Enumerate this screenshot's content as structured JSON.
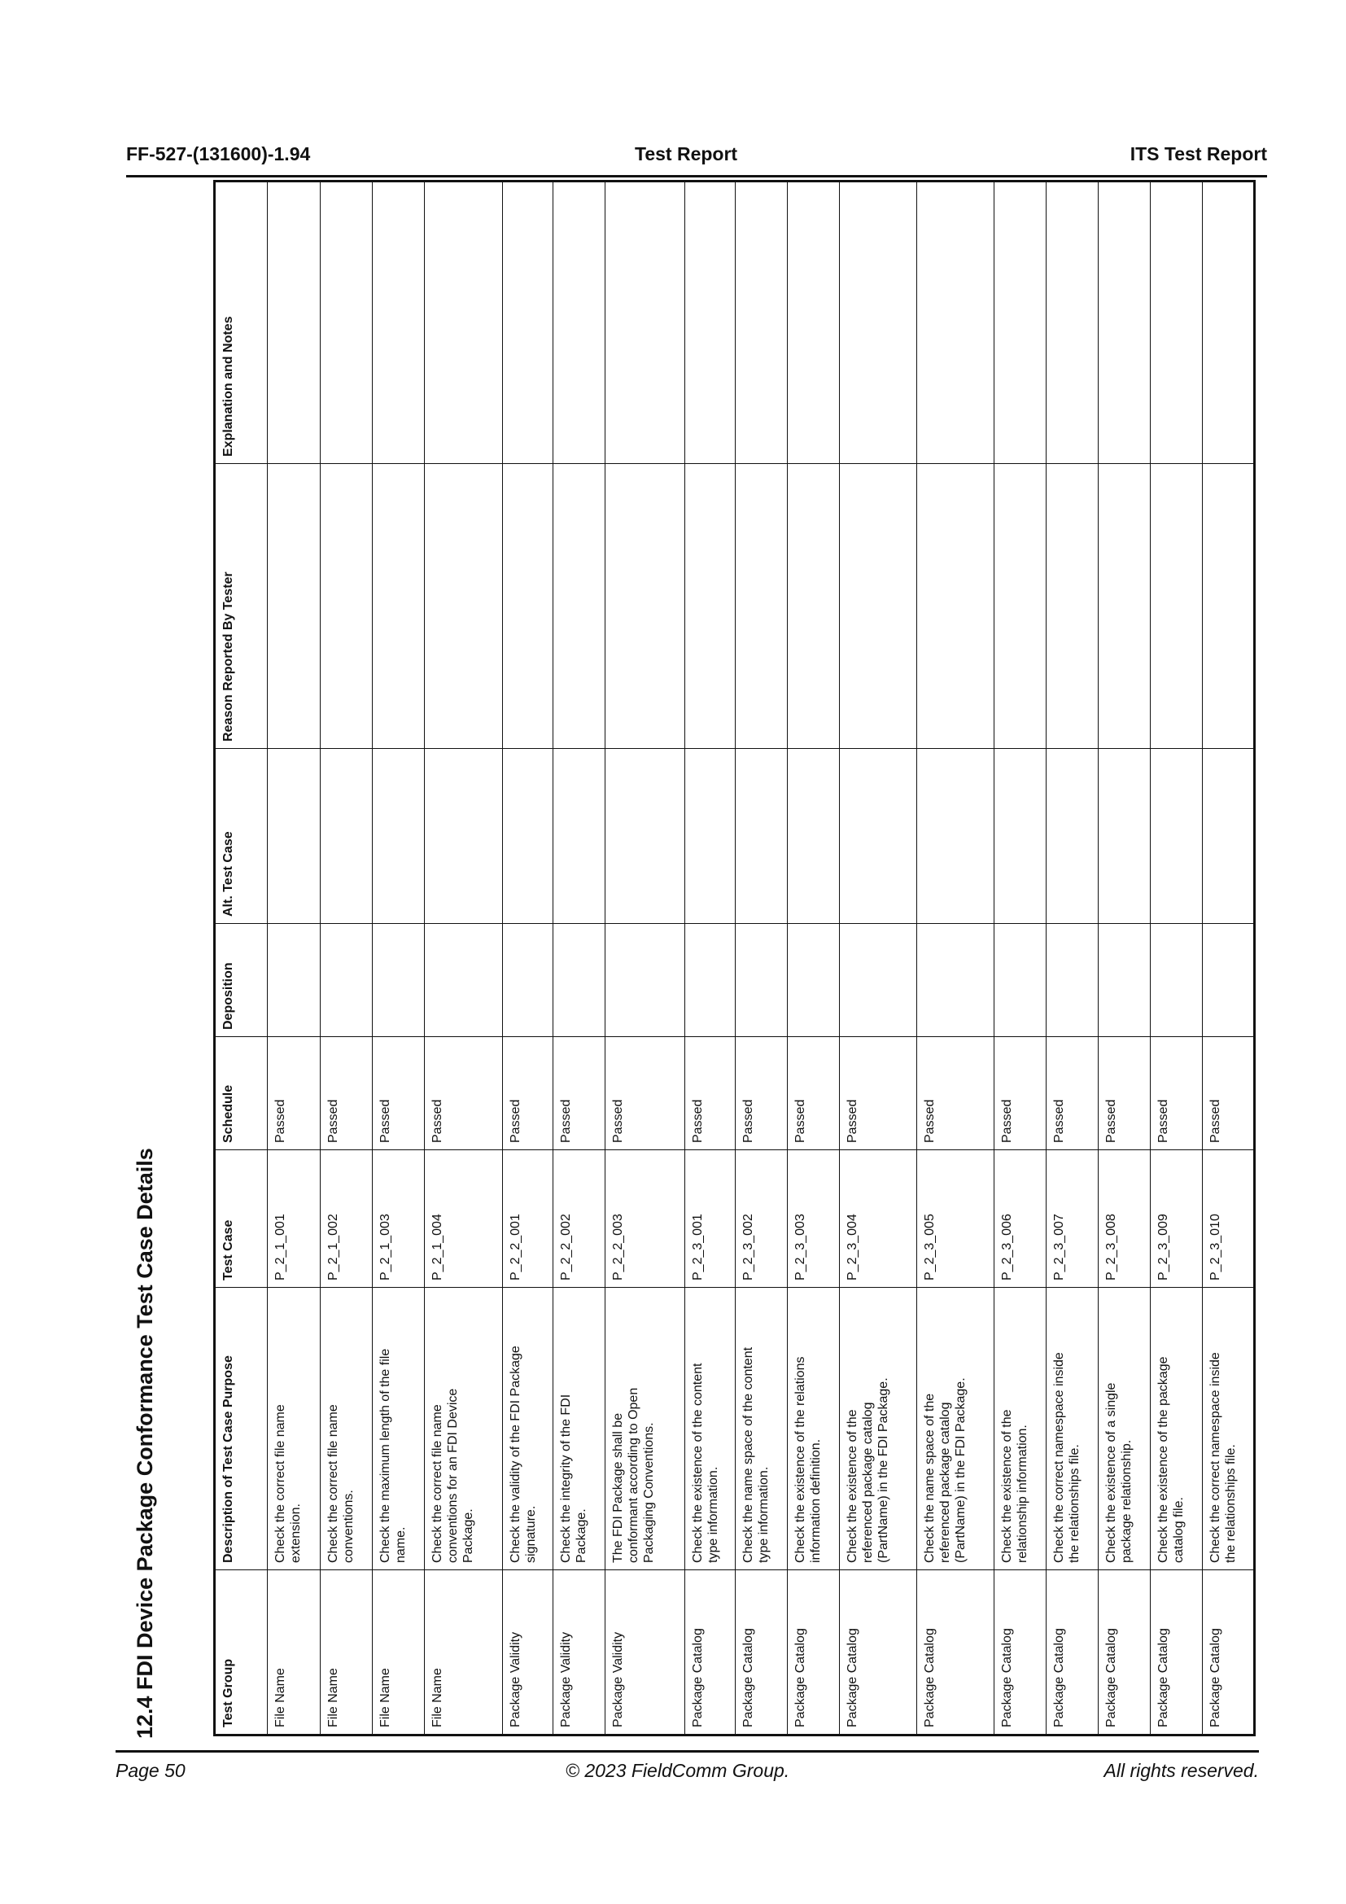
{
  "header": {
    "doc_id": "FF-527-(131600)-1.94",
    "center": "Test Report",
    "right": "ITS Test Report"
  },
  "section_title": "12.4  FDI Device Package Conformance Test Case Details",
  "table": {
    "columns": [
      "Test Group",
      "Description of Test Case Purpose",
      "Test Case",
      "Schedule",
      "Deposition",
      "Alt. Test Case",
      "Reason Reported By Tester",
      "Explanation and Notes"
    ],
    "rows": [
      {
        "group": "File Name",
        "description": "Check the correct file name extension.",
        "test_case": "P_2_1_001",
        "schedule": "Passed",
        "deposition": "",
        "alt": "",
        "reason": "",
        "notes": ""
      },
      {
        "group": "File Name",
        "description": "Check the correct file name conventions.",
        "test_case": "P_2_1_002",
        "schedule": "Passed",
        "deposition": "",
        "alt": "",
        "reason": "",
        "notes": ""
      },
      {
        "group": "File Name",
        "description": "Check the maximum length of the file name.",
        "test_case": "P_2_1_003",
        "schedule": "Passed",
        "deposition": "",
        "alt": "",
        "reason": "",
        "notes": ""
      },
      {
        "group": "File Name",
        "description": "Check the correct file name conventions for an FDI Device Package.",
        "test_case": "P_2_1_004",
        "schedule": "Passed",
        "deposition": "",
        "alt": "",
        "reason": "",
        "notes": ""
      },
      {
        "group": "Package Validity",
        "description": "Check the validity of the FDI Package signature.",
        "test_case": "P_2_2_001",
        "schedule": "Passed",
        "deposition": "",
        "alt": "",
        "reason": "",
        "notes": ""
      },
      {
        "group": "Package Validity",
        "description": "Check the integrity of the FDI Package.",
        "test_case": "P_2_2_002",
        "schedule": "Passed",
        "deposition": "",
        "alt": "",
        "reason": "",
        "notes": ""
      },
      {
        "group": "Package Validity",
        "description": "The FDI Package shall be conformant according to Open Packaging Conventions.",
        "test_case": "P_2_2_003",
        "schedule": "Passed",
        "deposition": "",
        "alt": "",
        "reason": "",
        "notes": ""
      },
      {
        "group": "Package Catalog",
        "description": "Check the existence of the content type information.",
        "test_case": "P_2_3_001",
        "schedule": "Passed",
        "deposition": "",
        "alt": "",
        "reason": "",
        "notes": ""
      },
      {
        "group": "Package Catalog",
        "description": "Check the name space of the content type information.",
        "test_case": "P_2_3_002",
        "schedule": "Passed",
        "deposition": "",
        "alt": "",
        "reason": "",
        "notes": ""
      },
      {
        "group": "Package Catalog",
        "description": "Check the existence of the relations information definition.",
        "test_case": "P_2_3_003",
        "schedule": "Passed",
        "deposition": "",
        "alt": "",
        "reason": "",
        "notes": ""
      },
      {
        "group": "Package Catalog",
        "description": "Check the existence of the referenced package catalog (PartName) in the FDI Package.",
        "test_case": "P_2_3_004",
        "schedule": "Passed",
        "deposition": "",
        "alt": "",
        "reason": "",
        "notes": ""
      },
      {
        "group": "Package Catalog",
        "description": "Check the name space of the referenced package catalog (PartName) in the FDI Package.",
        "test_case": "P_2_3_005",
        "schedule": "Passed",
        "deposition": "",
        "alt": "",
        "reason": "",
        "notes": ""
      },
      {
        "group": "Package Catalog",
        "description": "Check the existence of the relationship information.",
        "test_case": "P_2_3_006",
        "schedule": "Passed",
        "deposition": "",
        "alt": "",
        "reason": "",
        "notes": ""
      },
      {
        "group": "Package Catalog",
        "description": "Check the correct namespace inside the relationships file.",
        "test_case": "P_2_3_007",
        "schedule": "Passed",
        "deposition": "",
        "alt": "",
        "reason": "",
        "notes": ""
      },
      {
        "group": "Package Catalog",
        "description": "Check the existence of a single package relationship.",
        "test_case": "P_2_3_008",
        "schedule": "Passed",
        "deposition": "",
        "alt": "",
        "reason": "",
        "notes": ""
      },
      {
        "group": "Package Catalog",
        "description": "Check the existence of the package catalog file.",
        "test_case": "P_2_3_009",
        "schedule": "Passed",
        "deposition": "",
        "alt": "",
        "reason": "",
        "notes": ""
      },
      {
        "group": "Package Catalog",
        "description": "Check the correct namespace inside the relationships file.",
        "test_case": "P_2_3_010",
        "schedule": "Passed",
        "deposition": "",
        "alt": "",
        "reason": "",
        "notes": ""
      }
    ]
  },
  "footer": {
    "page": "Page 50",
    "copyright": "© 2023 FieldComm Group.",
    "rights": "All rights reserved."
  }
}
